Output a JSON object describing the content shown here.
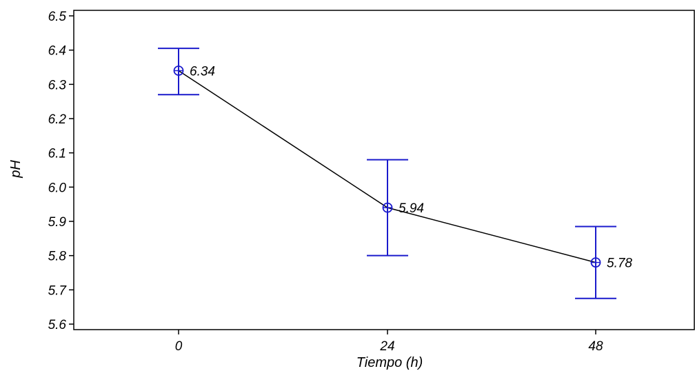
{
  "chart_data": {
    "type": "line",
    "title": "",
    "xlabel": "Tiempo (h)",
    "ylabel": "pH",
    "categories": [
      "0",
      "24",
      "48"
    ],
    "series": [
      {
        "values": [
          6.34,
          5.94,
          5.78
        ],
        "error_upper": [
          6.405,
          6.08,
          5.885
        ],
        "error_lower": [
          6.27,
          5.8,
          5.675
        ],
        "data_labels": [
          "6.34",
          "5.94",
          "5.78"
        ]
      }
    ],
    "ylim": [
      5.6,
      6.5
    ],
    "yticks": [
      "5.6",
      "5.7",
      "5.8",
      "5.9",
      "6.0",
      "6.1",
      "6.2",
      "6.3",
      "6.4",
      "6.5"
    ],
    "grid": false,
    "colors": {
      "line": "#000000",
      "marker": "#1a1acc",
      "error_bar": "#1a1acc",
      "axis": "#000000"
    }
  }
}
